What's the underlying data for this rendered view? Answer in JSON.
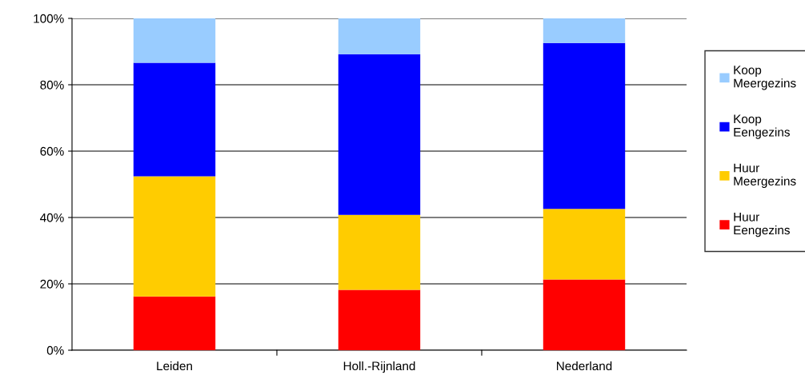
{
  "chart_data": {
    "type": "bar",
    "stacked": true,
    "categories": [
      "Leiden",
      "Holl.-Rijnland",
      "Nederland"
    ],
    "series": [
      {
        "name": "Huur\nEengezins",
        "color": "#ff0000",
        "values": [
          16.2,
          18.2,
          21.3
        ]
      },
      {
        "name": "Huur\nMeergezins",
        "color": "#ffcc00",
        "values": [
          36.2,
          22.6,
          21.3
        ]
      },
      {
        "name": "Koop\nEengezins",
        "color": "#0000ff",
        "values": [
          34.2,
          48.4,
          50.0
        ]
      },
      {
        "name": "Koop\nMeergezins",
        "color": "#99ccff",
        "values": [
          13.4,
          10.8,
          7.4
        ]
      }
    ],
    "ylim": [
      0,
      100
    ],
    "yticks": [
      {
        "value": 0,
        "label": "0%"
      },
      {
        "value": 20,
        "label": "20%"
      },
      {
        "value": 40,
        "label": "40%"
      },
      {
        "value": 60,
        "label": "60%"
      },
      {
        "value": 80,
        "label": "80%"
      },
      {
        "value": 100,
        "label": "100%"
      }
    ],
    "grid": "y",
    "legend": "right"
  }
}
